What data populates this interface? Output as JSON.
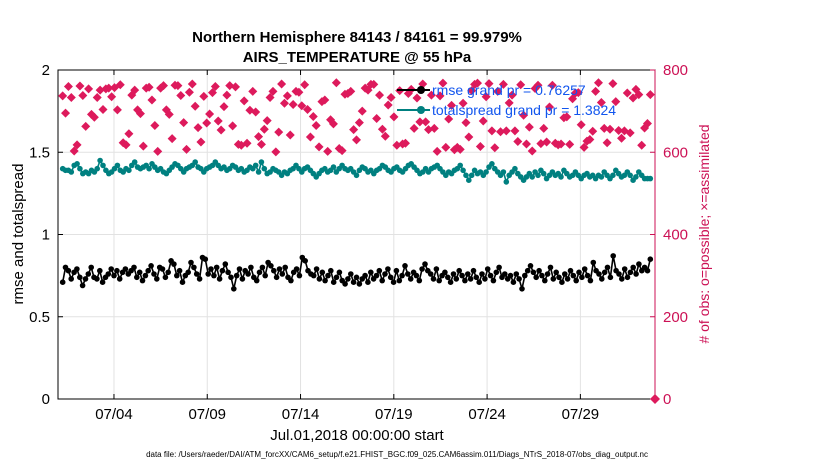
{
  "chart_data": {
    "type": "line",
    "title": "Northern Hemisphere 84143 / 84161 = 99.979%",
    "subtitle": "AIRS_TEMPERATURE @ 55 hPa",
    "xlabel": "Jul.01,2018 00:00:00 start",
    "ylabel": "rmse and totalspread",
    "y2label": "# of obs: o=possible; ×=assimilated",
    "footnote": "data file: /Users/raeder/DAI/ATM_forcXX/CAM6_setup/f.e21.FHIST_BGC.f09_025.CAM6assim.011/Diags_NTrS_2018-07/obs_diag_output.nc",
    "x_ticks": [
      "07/04",
      "07/09",
      "07/14",
      "07/19",
      "07/24",
      "07/29"
    ],
    "x_tick_days": [
      3,
      8,
      13,
      18,
      23,
      28
    ],
    "xlim": [
      0.0,
      32.0
    ],
    "ylim": [
      0,
      2
    ],
    "y_ticks": [
      "0",
      "0.5",
      "1",
      "1.5",
      "2"
    ],
    "y2lim": [
      0,
      800
    ],
    "y2_ticks": [
      "0",
      "200",
      "400",
      "600",
      "800"
    ],
    "grid": true,
    "legend_position": "top-right",
    "colors": {
      "rmse": "#000000",
      "spread": "#008080",
      "obs": "#cc1155",
      "legend_text": "#1155ee"
    },
    "series": [
      {
        "name": "rmse grand pr = 0.76257",
        "axis": "left",
        "values": [
          0.71,
          0.8,
          0.78,
          0.73,
          0.77,
          0.79,
          0.74,
          0.69,
          0.73,
          0.76,
          0.8,
          0.74,
          0.73,
          0.78,
          0.71,
          0.74,
          0.76,
          0.79,
          0.75,
          0.78,
          0.73,
          0.77,
          0.79,
          0.76,
          0.78,
          0.8,
          0.74,
          0.77,
          0.72,
          0.75,
          0.78,
          0.81,
          0.76,
          0.73,
          0.8,
          0.79,
          0.74,
          0.77,
          0.84,
          0.82,
          0.75,
          0.78,
          0.71,
          0.75,
          0.77,
          0.83,
          0.8,
          0.76,
          0.73,
          0.86,
          0.85,
          0.76,
          0.79,
          0.75,
          0.8,
          0.73,
          0.78,
          0.82,
          0.77,
          0.74,
          0.67,
          0.75,
          0.79,
          0.73,
          0.78,
          0.76,
          0.8,
          0.74,
          0.72,
          0.77,
          0.8,
          0.75,
          0.83,
          0.81,
          0.78,
          0.74,
          0.79,
          0.76,
          0.8,
          0.74,
          0.72,
          0.77,
          0.79,
          0.75,
          0.86,
          0.84,
          0.78,
          0.76,
          0.75,
          0.79,
          0.73,
          0.77,
          0.72,
          0.75,
          0.78,
          0.71,
          0.74,
          0.77,
          0.72,
          0.7,
          0.73,
          0.76,
          0.71,
          0.74,
          0.7,
          0.73,
          0.75,
          0.71,
          0.77,
          0.73,
          0.75,
          0.78,
          0.72,
          0.76,
          0.79,
          0.74,
          0.71,
          0.78,
          0.72,
          0.75,
          0.81,
          0.76,
          0.73,
          0.77,
          0.75,
          0.72,
          0.79,
          0.82,
          0.78,
          0.76,
          0.73,
          0.79,
          0.72,
          0.75,
          0.77,
          0.74,
          0.71,
          0.76,
          0.73,
          0.78,
          0.75,
          0.72,
          0.76,
          0.73,
          0.78,
          0.74,
          0.71,
          0.76,
          0.73,
          0.79,
          0.75,
          0.72,
          0.77,
          0.8,
          0.74,
          0.76,
          0.73,
          0.75,
          0.71,
          0.76,
          0.73,
          0.67,
          0.75,
          0.78,
          0.81,
          0.77,
          0.74,
          0.78,
          0.75,
          0.72,
          0.76,
          0.8,
          0.73,
          0.77,
          0.74,
          0.71,
          0.76,
          0.73,
          0.78,
          0.75,
          0.72,
          0.77,
          0.74,
          0.79,
          0.75,
          0.72,
          0.83,
          0.78,
          0.76,
          0.73,
          0.77,
          0.8,
          0.74,
          0.87,
          0.78,
          0.76,
          0.73,
          0.79,
          0.74,
          0.77,
          0.8,
          0.76,
          0.82,
          0.78,
          0.8,
          0.78,
          0.85
        ]
      },
      {
        "name": "totalspread grand pr = 1.3824",
        "axis": "left",
        "values": [
          1.4,
          1.39,
          1.39,
          1.38,
          1.42,
          1.43,
          1.4,
          1.37,
          1.38,
          1.37,
          1.39,
          1.38,
          1.4,
          1.45,
          1.42,
          1.39,
          1.37,
          1.38,
          1.4,
          1.42,
          1.39,
          1.38,
          1.4,
          1.39,
          1.42,
          1.44,
          1.41,
          1.4,
          1.41,
          1.42,
          1.4,
          1.43,
          1.41,
          1.39,
          1.4,
          1.38,
          1.37,
          1.39,
          1.41,
          1.43,
          1.42,
          1.4,
          1.38,
          1.4,
          1.41,
          1.42,
          1.44,
          1.41,
          1.4,
          1.38,
          1.4,
          1.41,
          1.42,
          1.44,
          1.42,
          1.4,
          1.41,
          1.39,
          1.4,
          1.42,
          1.41,
          1.39,
          1.4,
          1.38,
          1.39,
          1.41,
          1.4,
          1.42,
          1.38,
          1.44,
          1.4,
          1.37,
          1.38,
          1.4,
          1.39,
          1.38,
          1.36,
          1.38,
          1.37,
          1.39,
          1.4,
          1.42,
          1.4,
          1.38,
          1.4,
          1.41,
          1.39,
          1.37,
          1.35,
          1.37,
          1.39,
          1.4,
          1.38,
          1.39,
          1.41,
          1.38,
          1.4,
          1.42,
          1.4,
          1.39,
          1.4,
          1.38,
          1.36,
          1.39,
          1.41,
          1.4,
          1.38,
          1.39,
          1.37,
          1.39,
          1.4,
          1.42,
          1.41,
          1.39,
          1.38,
          1.4,
          1.41,
          1.39,
          1.38,
          1.4,
          1.42,
          1.43,
          1.41,
          1.39,
          1.37,
          1.38,
          1.4,
          1.38,
          1.4,
          1.41,
          1.42,
          1.4,
          1.38,
          1.36,
          1.38,
          1.37,
          1.39,
          1.4,
          1.42,
          1.39,
          1.36,
          1.33,
          1.36,
          1.39,
          1.37,
          1.38,
          1.36,
          1.38,
          1.41,
          1.43,
          1.4,
          1.38,
          1.36,
          1.38,
          1.32,
          1.36,
          1.38,
          1.4,
          1.37,
          1.35,
          1.33,
          1.35,
          1.37,
          1.35,
          1.38,
          1.36,
          1.39,
          1.37,
          1.34,
          1.36,
          1.38,
          1.36,
          1.37,
          1.35,
          1.39,
          1.37,
          1.35,
          1.36,
          1.38,
          1.36,
          1.34,
          1.36,
          1.37,
          1.35,
          1.36,
          1.34,
          1.36,
          1.35,
          1.38,
          1.36,
          1.34,
          1.36,
          1.39,
          1.37,
          1.35,
          1.36,
          1.38,
          1.36,
          1.33,
          1.35,
          1.38,
          1.36,
          1.34,
          1.34,
          1.34
        ]
      },
      {
        "name": "# of obs (possible)",
        "axis": "right",
        "values": [
          737,
          695,
          760,
          733,
          603,
          618,
          761,
          738,
          663,
          754,
          692,
          685,
          733,
          751,
          704,
          754,
          756,
          735,
          757,
          703,
          764,
          623,
          618,
          645,
          739,
          751,
          703,
          694,
          615,
          756,
          758,
          727,
          665,
          602,
          756,
          762,
          703,
          692,
          633,
          763,
          762,
          738,
          672,
          607,
          746,
          766,
          712,
          660,
          625,
          736,
          671,
          693,
          745,
          760,
          676,
          654,
          711,
          739,
          762,
          664,
          759,
          619,
          617,
          725,
          622,
          702,
          748,
          698,
          638,
          619,
          656,
          677,
          733,
          748,
          601,
          649,
          766,
          719,
          737,
          642,
          716,
          748,
          746,
          713,
          764,
          704,
          637,
          687,
          665,
          613,
          723,
          727,
          602,
          679,
          669,
          769,
          609,
          604,
          741,
          743,
          748,
          655,
          630,
          672,
          700,
          756,
          751,
          765,
          765,
          682,
          739,
          656,
          639,
          715,
          733,
          686,
          617,
          750,
          620,
          622,
          743,
          753,
          658,
          732,
          674,
          766,
          674,
          655,
          739,
          658,
          602,
          737,
          768,
          612,
          681,
          714,
          606,
          612,
          607,
          719,
          672,
          637,
          750,
          765,
          768,
          614,
          676,
          735,
          767,
          652,
          611,
          748,
          650,
          765,
          652,
          720,
          739,
          652,
          626,
          764,
          690,
          620,
          661,
          603,
          755,
          763,
          621,
          658,
          625,
          710,
          763,
          622,
          618,
          620,
          684,
          686,
          619,
          730,
          744,
          745,
          667,
          612,
          627,
          631,
          651,
          748,
          769,
          721,
          658,
          623,
          656,
          767,
          723,
          653,
          634,
          652,
          744,
          647,
          732,
          753,
          740,
          617,
          659,
          670,
          740
        ]
      }
    ]
  }
}
